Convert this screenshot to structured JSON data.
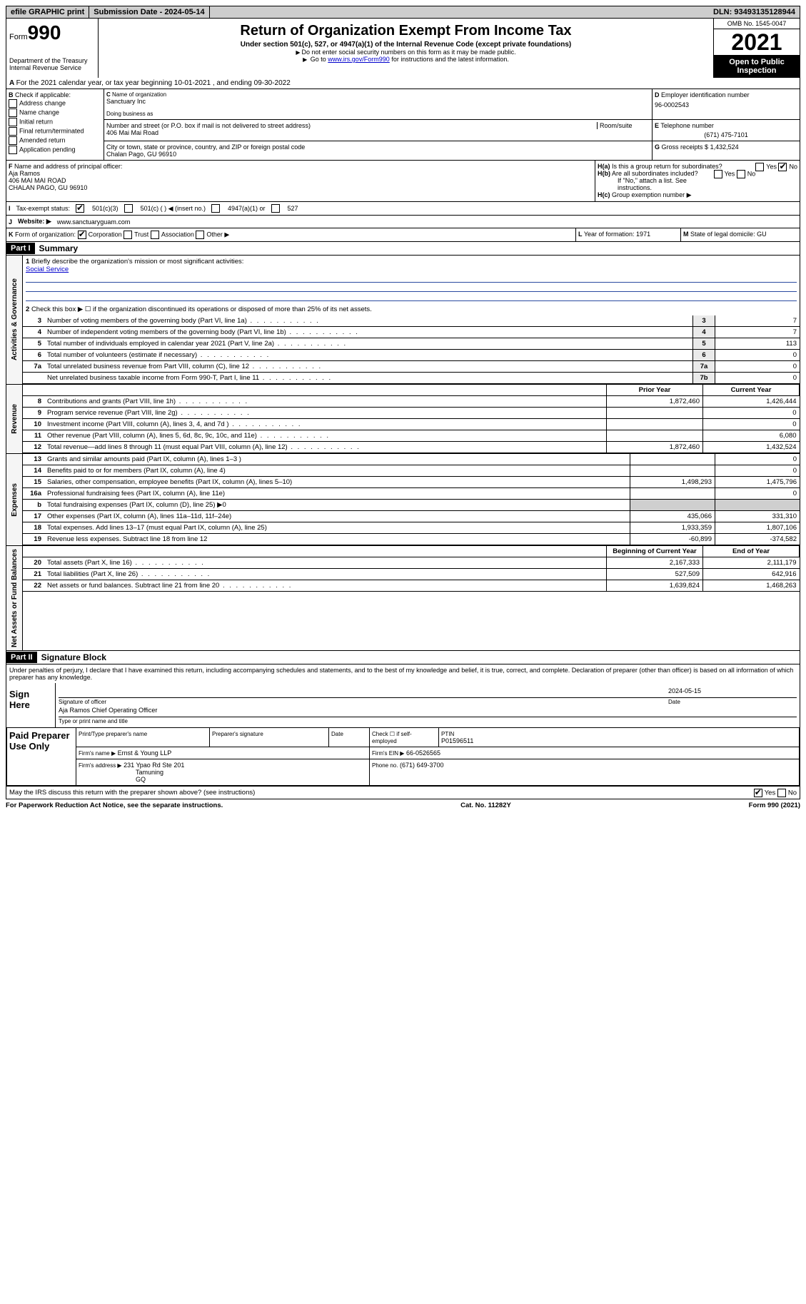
{
  "topbar": {
    "efile": "efile GRAPHIC print",
    "submission": "Submission Date - 2024-05-14",
    "dln": "DLN: 93493135128944"
  },
  "header": {
    "form_label": "Form",
    "form_num": "990",
    "dept": "Department of the Treasury",
    "irs": "Internal Revenue Service",
    "title": "Return of Organization Exempt From Income Tax",
    "sub": "Under section 501(c), 527, or 4947(a)(1) of the Internal Revenue Code (except private foundations)",
    "l1": "Do not enter social security numbers on this form as it may be made public.",
    "l2_pre": "Go to ",
    "l2_link": "www.irs.gov/Form990",
    "l2_post": " for instructions and the latest information.",
    "omb": "OMB No. 1545-0047",
    "year": "2021",
    "open": "Open to Public Inspection"
  },
  "A": "For the 2021 calendar year, or tax year beginning 10-01-2021   , and ending 09-30-2022",
  "B": {
    "label": "Check if applicable:",
    "items": [
      "Address change",
      "Name change",
      "Initial return",
      "Final return/terminated",
      "Amended return",
      "Application pending"
    ]
  },
  "C": {
    "name_lbl": "Name of organization",
    "name": "Sanctuary Inc",
    "dba_lbl": "Doing business as",
    "dba": "",
    "addr_lbl": "Number and street (or P.O. box if mail is not delivered to street address)",
    "room_lbl": "Room/suite",
    "addr": "406 Mai Mai Road",
    "city_lbl": "City or town, state or province, country, and ZIP or foreign postal code",
    "city": "Chalan Pago, GU  96910"
  },
  "D": {
    "lbl": "Employer identification number",
    "val": "96-0002543"
  },
  "E": {
    "lbl": "Telephone number",
    "val": "(671) 475-7101"
  },
  "G": {
    "lbl": "Gross receipts $",
    "val": "1,432,524"
  },
  "F": {
    "lbl": "Name and address of principal officer:",
    "name": "Aja Ramos",
    "addr1": "406 MAI MAI ROAD",
    "addr2": "CHALAN PAGO, GU  96910"
  },
  "H": {
    "a": "Is this a group return for subordinates?",
    "b": "Are all subordinates included?",
    "b_note": "If \"No,\" attach a list. See instructions.",
    "c": "Group exemption number ▶",
    "yes": "Yes",
    "no": "No"
  },
  "I": {
    "lbl": "Tax-exempt status:",
    "o1": "501(c)(3)",
    "o2": "501(c) (  ) ◀ (insert no.)",
    "o3": "4947(a)(1) or",
    "o4": "527"
  },
  "J": {
    "lbl": "Website: ▶",
    "val": "www.sanctuaryguam.com"
  },
  "K": {
    "lbl": "Form of organization:",
    "o": [
      "Corporation",
      "Trust",
      "Association",
      "Other ▶"
    ],
    "L": "Year of formation: 1971",
    "M": "State of legal domicile: GU"
  },
  "part1": {
    "tag": "Part I",
    "title": "Summary",
    "line1_lbl": "Briefly describe the organization's mission or most significant activities:",
    "line1_val": "Social Service",
    "line2": "Check this box ▶ ☐  if the organization discontinued its operations or disposed of more than 25% of its net assets.",
    "govLines": [
      {
        "n": "3",
        "t": "Number of voting members of the governing body (Part VI, line 1a)",
        "c": "3",
        "v": "7"
      },
      {
        "n": "4",
        "t": "Number of independent voting members of the governing body (Part VI, line 1b)",
        "c": "4",
        "v": "7"
      },
      {
        "n": "5",
        "t": "Total number of individuals employed in calendar year 2021 (Part V, line 2a)",
        "c": "5",
        "v": "113"
      },
      {
        "n": "6",
        "t": "Total number of volunteers (estimate if necessary)",
        "c": "6",
        "v": "0"
      },
      {
        "n": "7a",
        "t": "Total unrelated business revenue from Part VIII, column (C), line 12",
        "c": "7a",
        "v": "0"
      },
      {
        "n": "",
        "t": "Net unrelated business taxable income from Form 990-T, Part I, line 11",
        "c": "7b",
        "v": "0"
      }
    ],
    "col_prior": "Prior Year",
    "col_curr": "Current Year",
    "revenue": [
      {
        "n": "8",
        "t": "Contributions and grants (Part VIII, line 1h)",
        "p": "1,872,460",
        "c": "1,426,444"
      },
      {
        "n": "9",
        "t": "Program service revenue (Part VIII, line 2g)",
        "p": "",
        "c": "0"
      },
      {
        "n": "10",
        "t": "Investment income (Part VIII, column (A), lines 3, 4, and 7d )",
        "p": "",
        "c": "0"
      },
      {
        "n": "11",
        "t": "Other revenue (Part VIII, column (A), lines 5, 6d, 8c, 9c, 10c, and 11e)",
        "p": "",
        "c": "6,080"
      },
      {
        "n": "12",
        "t": "Total revenue—add lines 8 through 11 (must equal Part VIII, column (A), line 12)",
        "p": "1,872,460",
        "c": "1,432,524"
      }
    ],
    "expenses": [
      {
        "n": "13",
        "t": "Grants and similar amounts paid (Part IX, column (A), lines 1–3 )",
        "p": "",
        "c": "0"
      },
      {
        "n": "14",
        "t": "Benefits paid to or for members (Part IX, column (A), line 4)",
        "p": "",
        "c": "0"
      },
      {
        "n": "15",
        "t": "Salaries, other compensation, employee benefits (Part IX, column (A), lines 5–10)",
        "p": "1,498,293",
        "c": "1,475,796"
      },
      {
        "n": "16a",
        "t": "Professional fundraising fees (Part IX, column (A), line 11e)",
        "p": "",
        "c": "0"
      },
      {
        "n": "b",
        "t": "Total fundraising expenses (Part IX, column (D), line 25) ▶0",
        "p": "shade",
        "c": "shade"
      },
      {
        "n": "17",
        "t": "Other expenses (Part IX, column (A), lines 11a–11d, 11f–24e)",
        "p": "435,066",
        "c": "331,310"
      },
      {
        "n": "18",
        "t": "Total expenses. Add lines 13–17 (must equal Part IX, column (A), line 25)",
        "p": "1,933,359",
        "c": "1,807,106"
      },
      {
        "n": "19",
        "t": "Revenue less expenses. Subtract line 18 from line 12",
        "p": "-60,899",
        "c": "-374,582"
      }
    ],
    "col_beg": "Beginning of Current Year",
    "col_end": "End of Year",
    "net": [
      {
        "n": "20",
        "t": "Total assets (Part X, line 16)",
        "p": "2,167,333",
        "c": "2,111,179"
      },
      {
        "n": "21",
        "t": "Total liabilities (Part X, line 26)",
        "p": "527,509",
        "c": "642,916"
      },
      {
        "n": "22",
        "t": "Net assets or fund balances. Subtract line 21 from line 20",
        "p": "1,639,824",
        "c": "1,468,263"
      }
    ],
    "side_gov": "Activities & Governance",
    "side_rev": "Revenue",
    "side_exp": "Expenses",
    "side_net": "Net Assets or Fund Balances"
  },
  "part2": {
    "tag": "Part II",
    "title": "Signature Block",
    "perjury": "Under penalties of perjury, I declare that I have examined this return, including accompanying schedules and statements, and to the best of my knowledge and belief, it is true, correct, and complete. Declaration of preparer (other than officer) is based on all information of which preparer has any knowledge.",
    "sign_here": "Sign Here",
    "sig_lbl": "Signature of officer",
    "date_lbl": "Date",
    "date_val": "2024-05-15",
    "name_lbl": "Type or print name and title",
    "name_val": "Aja Ramos  Chief Operating Officer",
    "paid": "Paid Preparer Use Only",
    "pt_name_lbl": "Print/Type preparer's name",
    "pt_sig_lbl": "Preparer's signature",
    "pt_date_lbl": "Date",
    "pt_se": "Check ☐ if self-employed",
    "ptin_lbl": "PTIN",
    "ptin": "P01596511",
    "firm_name_lbl": "Firm's name  ▶",
    "firm_name": "Ernst & Young LLP",
    "firm_ein_lbl": "Firm's EIN ▶",
    "firm_ein": "66-0526565",
    "firm_addr_lbl": "Firm's address ▶",
    "firm_addr": "231 Ypao Rd Ste 201",
    "firm_city": "Tamuning",
    "firm_state": "GQ",
    "phone_lbl": "Phone no.",
    "phone": "(671) 649-3700",
    "discuss": "May the IRS discuss this return with the preparer shown above? (see instructions)"
  },
  "footer": {
    "l": "For Paperwork Reduction Act Notice, see the separate instructions.",
    "m": "Cat. No. 11282Y",
    "r": "Form 990 (2021)"
  }
}
